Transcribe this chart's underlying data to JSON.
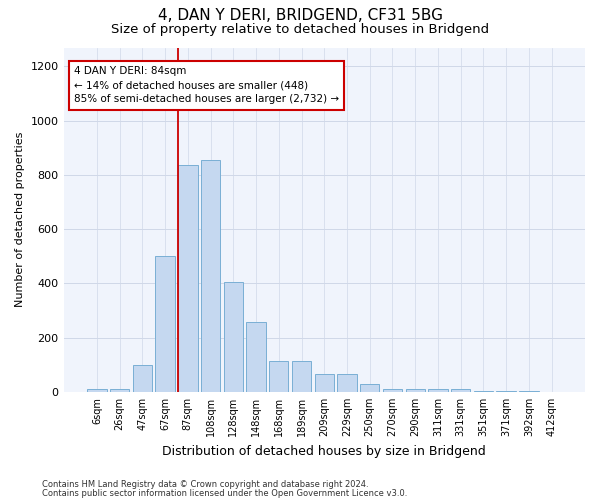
{
  "title1": "4, DAN Y DERI, BRIDGEND, CF31 5BG",
  "title2": "Size of property relative to detached houses in Bridgend",
  "xlabel": "Distribution of detached houses by size in Bridgend",
  "ylabel": "Number of detached properties",
  "footer1": "Contains HM Land Registry data © Crown copyright and database right 2024.",
  "footer2": "Contains public sector information licensed under the Open Government Licence v3.0.",
  "categories": [
    "6sqm",
    "26sqm",
    "47sqm",
    "67sqm",
    "87sqm",
    "108sqm",
    "128sqm",
    "148sqm",
    "168sqm",
    "189sqm",
    "209sqm",
    "229sqm",
    "250sqm",
    "270sqm",
    "290sqm",
    "311sqm",
    "331sqm",
    "351sqm",
    "371sqm",
    "392sqm",
    "412sqm"
  ],
  "values": [
    10,
    12,
    100,
    500,
    835,
    855,
    405,
    258,
    115,
    115,
    65,
    65,
    30,
    10,
    10,
    10,
    10,
    5,
    3,
    3,
    0
  ],
  "bar_color": "#c5d8f0",
  "bar_edge_color": "#7aafd4",
  "vline_bin_index": 4,
  "vline_color": "#cc0000",
  "annotation_text": "4 DAN Y DERI: 84sqm\n← 14% of detached houses are smaller (448)\n85% of semi-detached houses are larger (2,732) →",
  "annotation_box_color": "white",
  "annotation_box_edge_color": "#cc0000",
  "ylim": [
    0,
    1270
  ],
  "yticks": [
    0,
    200,
    400,
    600,
    800,
    1000,
    1200
  ],
  "title1_fontsize": 11,
  "title2_fontsize": 9.5,
  "xlabel_fontsize": 9,
  "ylabel_fontsize": 8,
  "annotation_fontsize": 7.5,
  "footer_fontsize": 6,
  "bg_color": "#f0f4fc",
  "grid_color": "#d0d8e8"
}
